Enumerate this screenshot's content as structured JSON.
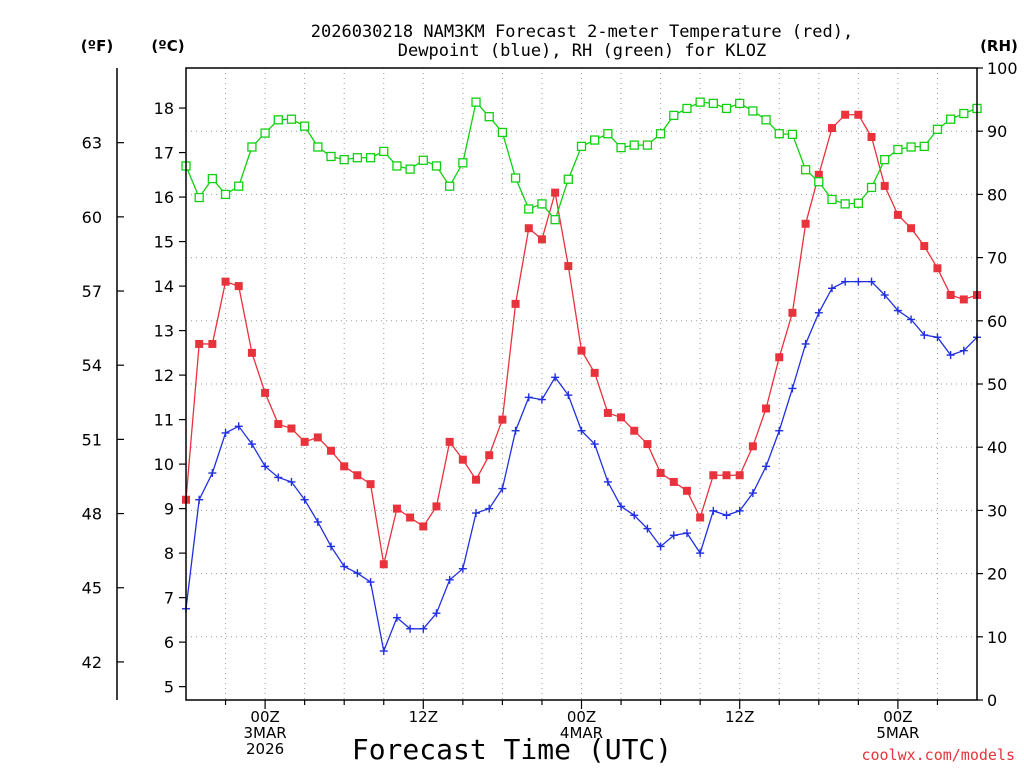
{
  "chart_data": {
    "type": "line",
    "title_line1": "2026030218 NAM3KM Forecast 2-meter Temperature (red),",
    "title_line2": "Dewpoint (blue), RH (green) for KLOZ",
    "unit_f": "(ºF)",
    "unit_c": "(ºC)",
    "unit_rh": "(RH)",
    "xlabel": "Forecast Time (UTC)",
    "watermark": "coolwx.com/models",
    "x_range_hours": [
      0,
      60
    ],
    "celsius_range": [
      4.7,
      18.9
    ],
    "rh_range": [
      0,
      100
    ],
    "fahrenheit_ticks": [
      "42",
      "45",
      "48",
      "51",
      "54",
      "57",
      "60",
      "63"
    ],
    "celsius_ticks": [
      "5",
      "6",
      "7",
      "8",
      "9",
      "10",
      "11",
      "12",
      "13",
      "14",
      "15",
      "16",
      "17",
      "18"
    ],
    "rh_ticks": [
      "0",
      "10",
      "20",
      "30",
      "40",
      "50",
      "60",
      "70",
      "80",
      "90",
      "100"
    ],
    "x_ticks": [
      {
        "hour": 6,
        "line1": "00Z",
        "line2": "3MAR",
        "line3": "2026"
      },
      {
        "hour": 18,
        "line1": "12Z",
        "line2": "",
        "line3": ""
      },
      {
        "hour": 30,
        "line1": "00Z",
        "line2": "4MAR",
        "line3": ""
      },
      {
        "hour": 42,
        "line1": "12Z",
        "line2": "",
        "line3": ""
      },
      {
        "hour": 54,
        "line1": "00Z",
        "line2": "5MAR",
        "line3": ""
      }
    ],
    "series": [
      {
        "name": "Temperature",
        "color": "#e8323c",
        "marker": "filled-square",
        "unit": "C",
        "values": [
          9.2,
          12.7,
          12.7,
          14.1,
          14.0,
          12.5,
          11.6,
          10.9,
          10.8,
          10.5,
          10.6,
          10.3,
          9.95,
          9.75,
          9.55,
          7.75,
          9.0,
          8.8,
          8.6,
          9.05,
          10.5,
          10.1,
          9.65,
          10.2,
          11.0,
          13.6,
          15.3,
          15.05,
          16.1,
          14.45,
          12.55,
          12.05,
          11.15,
          11.05,
          10.75,
          10.45,
          9.8,
          9.6,
          9.4,
          8.8,
          9.75,
          9.75,
          9.75,
          10.4,
          11.25,
          12.4,
          13.4,
          15.4,
          16.5,
          17.55,
          17.85,
          17.85,
          17.35,
          16.25,
          15.6,
          15.3,
          14.9,
          14.4,
          13.8,
          13.7,
          13.8
        ]
      },
      {
        "name": "Dewpoint",
        "color": "#2030e0",
        "marker": "plus",
        "unit": "C",
        "values": [
          6.75,
          9.2,
          9.8,
          10.7,
          10.85,
          10.45,
          9.95,
          9.7,
          9.6,
          9.2,
          8.7,
          8.15,
          7.7,
          7.55,
          7.35,
          5.8,
          6.55,
          6.3,
          6.3,
          6.65,
          7.4,
          7.65,
          8.9,
          9.0,
          9.45,
          10.75,
          11.5,
          11.45,
          11.95,
          11.55,
          10.75,
          10.45,
          9.6,
          9.05,
          8.85,
          8.55,
          8.15,
          8.4,
          8.45,
          8.0,
          8.95,
          8.85,
          8.95,
          9.35,
          9.95,
          10.75,
          11.7,
          12.7,
          13.4,
          13.95,
          14.1,
          14.1,
          14.1,
          13.8,
          13.45,
          13.25,
          12.9,
          12.85,
          12.45,
          12.55,
          12.85
        ]
      },
      {
        "name": "RH",
        "color": "#10d010",
        "marker": "open-square",
        "unit": "%",
        "values": [
          84.5,
          79.5,
          82.5,
          80.0,
          81.3,
          87.5,
          89.7,
          91.8,
          91.9,
          90.8,
          87.5,
          86.0,
          85.5,
          85.8,
          85.8,
          86.8,
          84.5,
          84.0,
          85.4,
          84.5,
          81.3,
          85.0,
          94.6,
          92.3,
          89.8,
          82.6,
          77.7,
          78.5,
          76.0,
          82.4,
          87.6,
          88.6,
          89.6,
          87.4,
          87.8,
          87.8,
          89.6,
          92.5,
          93.6,
          94.6,
          94.4,
          93.6,
          94.4,
          93.2,
          91.8,
          89.6,
          89.5,
          83.9,
          82.0,
          79.2,
          78.5,
          78.6,
          81.1,
          85.5,
          87.1,
          87.5,
          87.6,
          90.3,
          91.9,
          92.8,
          93.6
        ]
      }
    ]
  }
}
